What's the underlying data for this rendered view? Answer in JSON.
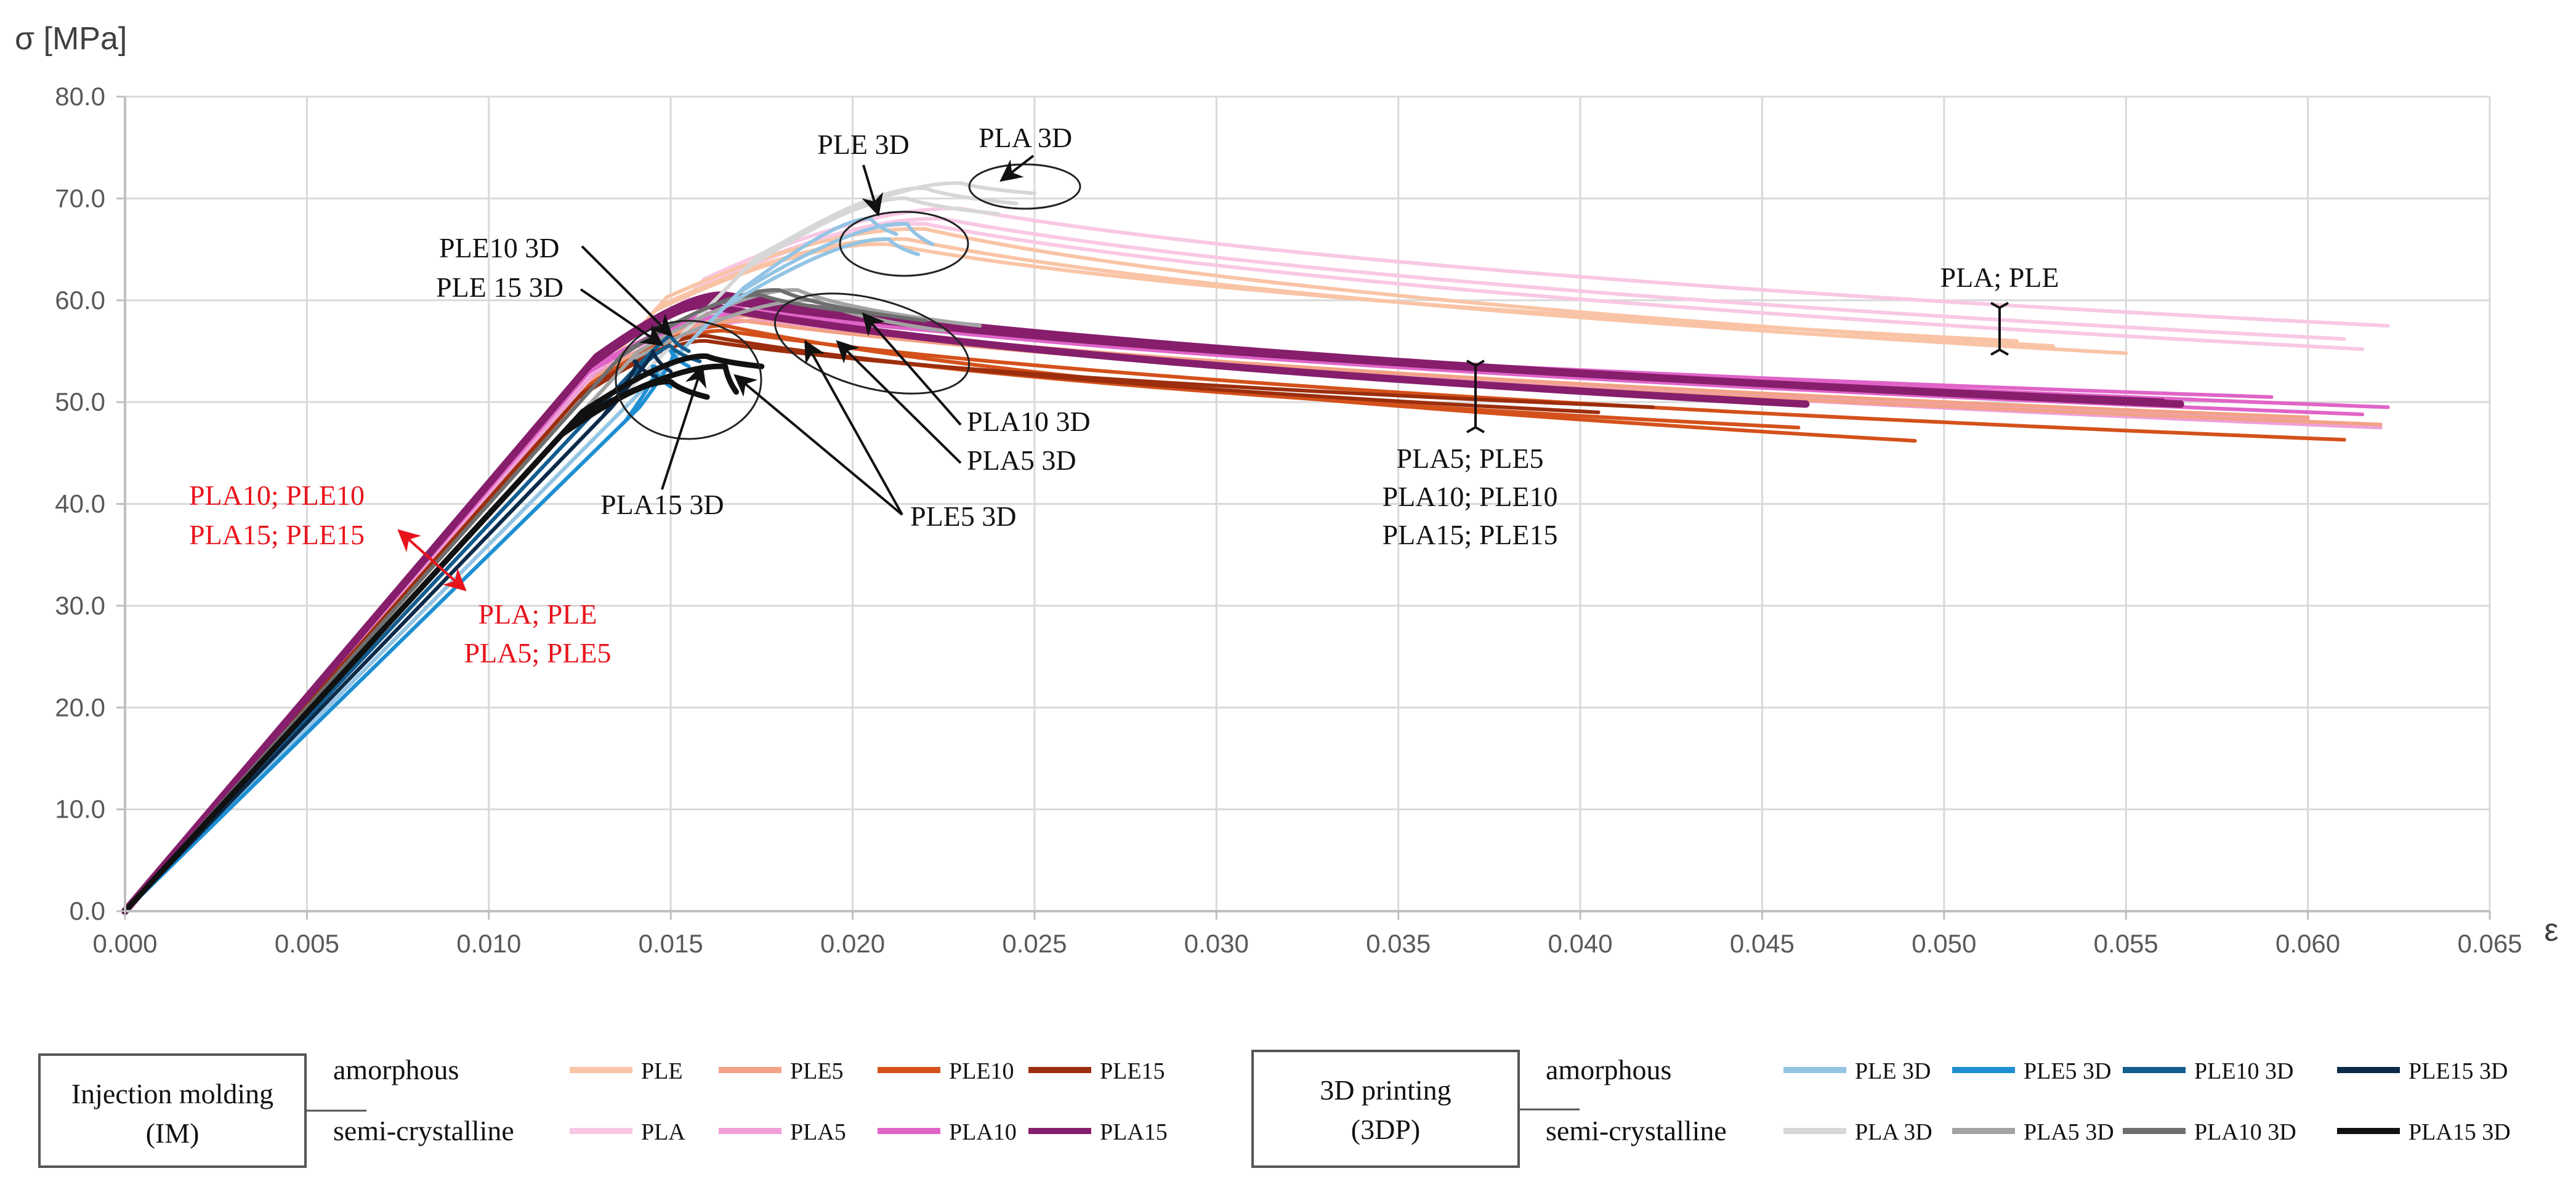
{
  "chart_data": {
    "type": "line",
    "title": "",
    "ylabel": "σ [MPa]",
    "xlabel": "ε",
    "xlim": [
      0,
      0.065
    ],
    "ylim": [
      0,
      80
    ],
    "grid": true,
    "xticks": [
      "0.000",
      "0.005",
      "0.010",
      "0.015",
      "0.020",
      "0.025",
      "0.030",
      "0.035",
      "0.040",
      "0.045",
      "0.050",
      "0.055",
      "0.060",
      "0.065"
    ],
    "yticks": [
      "0.0",
      "10.0",
      "20.0",
      "30.0",
      "40.0",
      "50.0",
      "60.0",
      "70.0",
      "80.0"
    ],
    "series": [
      {
        "name": "PLE",
        "color": "#f9c4a6",
        "process": "IM",
        "structure": "amorphous",
        "curves": [
          {
            "E": 4050,
            "peak": [
              0.022,
              67.0
            ],
            "end": [
              0.053,
              55.5
            ]
          },
          {
            "E": 4050,
            "peak": [
              0.0215,
              66.0
            ],
            "end": [
              0.055,
              54.8
            ]
          },
          {
            "E": 4050,
            "peak": [
              0.021,
              65.5
            ],
            "end": [
              0.052,
              56.0
            ]
          }
        ]
      },
      {
        "name": "PLE5",
        "color": "#f2a286",
        "process": "IM",
        "structure": "amorphous",
        "curves": [
          {
            "E": 4050,
            "peak": [
              0.017,
              58.5
            ],
            "end": [
              0.06,
              48.5
            ]
          },
          {
            "E": 4050,
            "peak": [
              0.017,
              58.0
            ],
            "end": [
              0.062,
              47.8
            ]
          }
        ]
      },
      {
        "name": "PLE10",
        "color": "#d4511b",
        "process": "IM",
        "structure": "amorphous",
        "curves": [
          {
            "E": 4050,
            "peak": [
              0.0165,
              57.5
            ],
            "end": [
              0.0492,
              46.2
            ]
          },
          {
            "E": 4050,
            "peak": [
              0.0165,
              57.0
            ],
            "end": [
              0.061,
              46.3
            ]
          },
          {
            "E": 4050,
            "peak": [
              0.016,
              56.5
            ],
            "end": [
              0.046,
              47.5
            ]
          }
        ]
      },
      {
        "name": "PLE15",
        "color": "#9c2e0d",
        "process": "IM",
        "structure": "amorphous",
        "curves": [
          {
            "E": 4050,
            "peak": [
              0.016,
              56.5
            ],
            "end": [
              0.0405,
              49.0
            ]
          },
          {
            "E": 4050,
            "peak": [
              0.016,
              56.0
            ],
            "end": [
              0.042,
              49.5
            ]
          }
        ]
      },
      {
        "name": "PLA",
        "color": "#f8c8e4",
        "process": "IM",
        "structure": "semi-crystalline",
        "curves": [
          {
            "E": 3900,
            "peak": [
              0.023,
              69.0
            ],
            "end": [
              0.0622,
              57.5
            ]
          },
          {
            "E": 3900,
            "peak": [
              0.0225,
              68.0
            ],
            "end": [
              0.061,
              56.2
            ]
          },
          {
            "E": 3900,
            "peak": [
              0.022,
              67.5
            ],
            "end": [
              0.0615,
              55.2
            ]
          }
        ]
      },
      {
        "name": "PLA5",
        "color": "#ef9fd8",
        "process": "IM",
        "structure": "semi-crystalline",
        "curves": [
          {
            "E": 4100,
            "peak": [
              0.0175,
              58.5
            ],
            "end": [
              0.062,
              47.5
            ]
          },
          {
            "E": 4100,
            "peak": [
              0.0175,
              58.0
            ],
            "end": [
              0.06,
              48.3
            ]
          }
        ]
      },
      {
        "name": "PLA10",
        "color": "#e064c8",
        "process": "IM",
        "structure": "semi-crystalline",
        "curves": [
          {
            "E": 4150,
            "peak": [
              0.0175,
              59.5
            ],
            "end": [
              0.0622,
              49.5
            ]
          },
          {
            "E": 4150,
            "peak": [
              0.0175,
              59.0
            ],
            "end": [
              0.0615,
              48.8
            ]
          },
          {
            "E": 4150,
            "peak": [
              0.0172,
              58.8
            ],
            "end": [
              0.059,
              50.5
            ]
          }
        ]
      },
      {
        "name": "PLA15",
        "color": "#861e6c",
        "process": "IM",
        "structure": "semi-crystalline",
        "curves": [
          {
            "E": 4200,
            "peak": [
              0.0165,
              60.5
            ],
            "end": [
              0.0565,
              49.8
            ]
          },
          {
            "E": 4200,
            "peak": [
              0.0165,
              60.0
            ],
            "end": [
              0.056,
              50.0
            ]
          },
          {
            "E": 4200,
            "peak": [
              0.016,
              59.5
            ],
            "end": [
              0.0462,
              49.8
            ]
          }
        ]
      },
      {
        "name": "PLE 3D",
        "color": "#93c4e4",
        "process": "3DP",
        "structure": "amorphous",
        "curves": [
          {
            "E": 3600,
            "peak": [
              0.0205,
              68.0
            ],
            "end": [
              0.0212,
              66.5
            ]
          },
          {
            "E": 3600,
            "peak": [
              0.0215,
              67.5
            ],
            "end": [
              0.0222,
              65.5
            ]
          },
          {
            "E": 3600,
            "peak": [
              0.021,
              66.0
            ],
            "end": [
              0.0218,
              64.5
            ]
          }
        ]
      },
      {
        "name": "PLE5 3D",
        "color": "#1d8fd2",
        "process": "3DP",
        "structure": "amorphous",
        "curves": [
          {
            "E": 3500,
            "peak": [
              0.015,
              55.0
            ],
            "end": [
              0.0155,
              53.5
            ]
          },
          {
            "E": 3500,
            "peak": [
              0.0145,
              53.5
            ],
            "end": [
              0.015,
              51.5
            ]
          }
        ]
      },
      {
        "name": "PLE10 3D",
        "color": "#135c8e",
        "process": "3DP",
        "structure": "amorphous",
        "curves": [
          {
            "E": 3800,
            "peak": [
              0.015,
              56.5
            ],
            "end": [
              0.0155,
              55.0
            ]
          },
          {
            "E": 3800,
            "peak": [
              0.015,
              55.5
            ],
            "end": [
              0.0158,
              54.0
            ]
          }
        ]
      },
      {
        "name": "PLE15 3D",
        "color": "#0c2b4a",
        "process": "3DP",
        "structure": "amorphous",
        "curves": [
          {
            "E": 3700,
            "peak": [
              0.0145,
              55.0
            ],
            "end": [
              0.015,
              53.0
            ]
          },
          {
            "E": 3700,
            "peak": [
              0.014,
              54.0
            ],
            "end": [
              0.0146,
              52.5
            ]
          }
        ]
      },
      {
        "name": "PLA 3D",
        "color": "#d7d7d7",
        "process": "3DP",
        "structure": "semi-crystalline",
        "curves": [
          {
            "E": 3700,
            "peak": [
              0.022,
              71.0
            ],
            "end": [
              0.0245,
              69.5
            ]
          },
          {
            "E": 3700,
            "peak": [
              0.0215,
              70.0
            ],
            "end": [
              0.024,
              68.5
            ]
          },
          {
            "E": 3700,
            "peak": [
              0.023,
              71.5
            ],
            "end": [
              0.025,
              70.5
            ]
          }
        ]
      },
      {
        "name": "PLA5 3D",
        "color": "#a3a3a3",
        "process": "3DP",
        "structure": "semi-crystalline",
        "curves": [
          {
            "E": 3900,
            "peak": [
              0.0185,
              61.0
            ],
            "end": [
              0.0235,
              57.5
            ]
          },
          {
            "E": 3900,
            "peak": [
              0.019,
              60.0
            ],
            "end": [
              0.0225,
              57.0
            ]
          }
        ]
      },
      {
        "name": "PLA10 3D",
        "color": "#6e6e6e",
        "process": "3DP",
        "structure": "semi-crystalline",
        "curves": [
          {
            "E": 4000,
            "peak": [
              0.018,
              61.0
            ],
            "end": [
              0.022,
              58.0
            ]
          },
          {
            "E": 4000,
            "peak": [
              0.0175,
              60.5
            ],
            "end": [
              0.021,
              58.5
            ]
          }
        ]
      },
      {
        "name": "PLA15 3D",
        "color": "#111111",
        "process": "3DP",
        "structure": "semi-crystalline",
        "curves": [
          {
            "E": 3900,
            "peak": [
              0.016,
              54.5
            ],
            "end": [
              0.0175,
              53.5
            ]
          },
          {
            "E": 3900,
            "peak": [
              0.0165,
              53.5
            ],
            "end": [
              0.0168,
              51.0
            ]
          },
          {
            "E": 3900,
            "peak": [
              0.015,
              52.0
            ],
            "end": [
              0.016,
              50.5
            ]
          }
        ]
      }
    ],
    "annotations": [
      {
        "id": "ann-pla-3d",
        "text": "PLA 3D",
        "color": "#111111"
      },
      {
        "id": "ann-ple-3d",
        "text": "PLE 3D",
        "color": "#111111"
      },
      {
        "id": "ann-ple10-3d",
        "text": "PLE10 3D",
        "color": "#111111"
      },
      {
        "id": "ann-ple15-3d",
        "text": "PLE 15 3D",
        "color": "#111111"
      },
      {
        "id": "ann-pla-ple",
        "text": "PLA; PLE",
        "color": "#111111"
      },
      {
        "id": "ann-pla10-3d",
        "text": "PLA10 3D",
        "color": "#111111"
      },
      {
        "id": "ann-pla5-3d",
        "text": "PLA5 3D",
        "color": "#111111"
      },
      {
        "id": "ann-pla15-3d",
        "text": "PLA15 3D",
        "color": "#111111"
      },
      {
        "id": "ann-ple5-3d",
        "text": "PLE5 3D",
        "color": "#111111"
      },
      {
        "id": "ann-group-1",
        "text": "PLA5; PLE5",
        "color": "#111111"
      },
      {
        "id": "ann-group-2",
        "text": "PLA10; PLE10",
        "color": "#111111"
      },
      {
        "id": "ann-group-3",
        "text": "PLA15; PLE15",
        "color": "#111111"
      },
      {
        "id": "ann-red-1",
        "text": "PLA10; PLE10",
        "color": "#e8141c"
      },
      {
        "id": "ann-red-2",
        "text": "PLA15; PLE15",
        "color": "#e8141c"
      },
      {
        "id": "ann-red-3",
        "text": "PLA; PLE",
        "color": "#e8141c"
      },
      {
        "id": "ann-red-4",
        "text": "PLA5; PLE5",
        "color": "#e8141c"
      }
    ],
    "legend": {
      "groups": [
        {
          "title_line1": "Injection molding",
          "title_line2": "(IM)",
          "process": "IM"
        },
        {
          "title_line1": "3D printing",
          "title_line2": "(3DP)",
          "process": "3DP"
        }
      ],
      "row_labels": {
        "amorphous": "amorphous",
        "semi-crystalline": "semi-crystalline"
      }
    }
  }
}
